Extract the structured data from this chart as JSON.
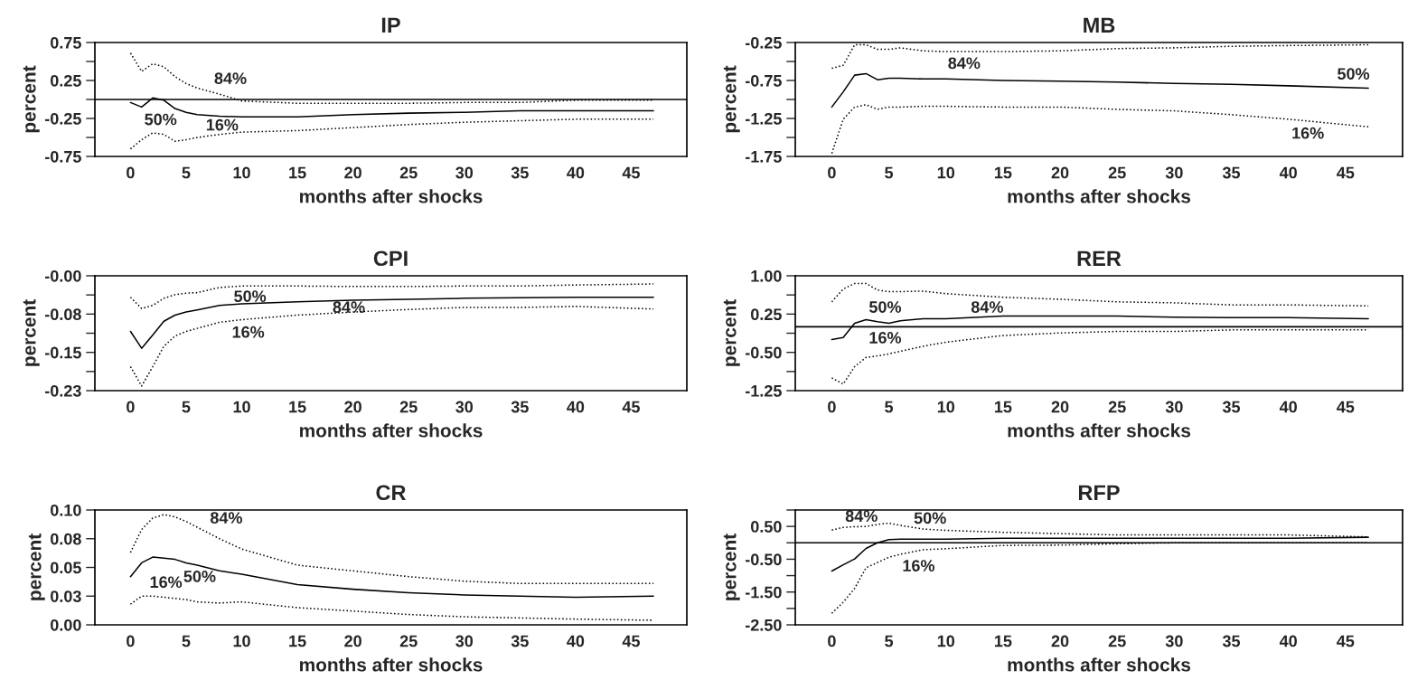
{
  "chart_data": [
    {
      "type": "line",
      "title": "IP",
      "xlabel": "months after shocks",
      "ylabel": "percent",
      "x": [
        0,
        1,
        2,
        3,
        4,
        5,
        6,
        8,
        10,
        15,
        20,
        25,
        30,
        35,
        40,
        47
      ],
      "series": [
        {
          "color": "#000000",
          "line_style": "dotted",
          "values": [
            0.61,
            0.37,
            0.47,
            0.43,
            0.3,
            0.21,
            0.15,
            0.07,
            -0.02,
            -0.05,
            -0.05,
            -0.05,
            -0.04,
            -0.04,
            -0.01,
            -0.01
          ]
        },
        {
          "color": "#000000",
          "line_style": "solid",
          "values": [
            -0.04,
            -0.1,
            0.02,
            -0.01,
            -0.12,
            -0.17,
            -0.2,
            -0.22,
            -0.23,
            -0.23,
            -0.2,
            -0.18,
            -0.17,
            -0.15,
            -0.15,
            -0.15
          ]
        },
        {
          "color": "#000000",
          "line_style": "dotted",
          "values": [
            -0.65,
            -0.53,
            -0.44,
            -0.46,
            -0.55,
            -0.53,
            -0.5,
            -0.46,
            -0.43,
            -0.41,
            -0.37,
            -0.33,
            -0.3,
            -0.28,
            -0.26,
            -0.26
          ]
        }
      ],
      "xlim": [
        -3.2,
        50
      ],
      "xticks": [
        0,
        5,
        10,
        15,
        20,
        25,
        30,
        35,
        40,
        45
      ],
      "ylim": [
        -0.75,
        0.75
      ],
      "yticks": [
        0.75,
        {
          "value": 0.5,
          "label": null
        },
        0.25,
        {
          "value": 0,
          "label": null
        },
        -0.25,
        {
          "value": -0.5,
          "label": null
        },
        -0.75
      ],
      "ref_lines": [
        {
          "axis": "y",
          "value": 0,
          "color": "#000000",
          "line_style": "solid"
        }
      ],
      "annotations": [
        "84%",
        "50%",
        "16%"
      ]
    },
    {
      "type": "line",
      "title": "MB",
      "xlabel": "months after shocks",
      "ylabel": "percent",
      "x": [
        0,
        1,
        2,
        3,
        4,
        5,
        6,
        8,
        10,
        15,
        20,
        25,
        30,
        35,
        40,
        47
      ],
      "series": [
        {
          "color": "#000000",
          "line_style": "dotted",
          "values": [
            -0.59,
            -0.55,
            -0.28,
            -0.28,
            -0.34,
            -0.34,
            -0.32,
            -0.36,
            -0.37,
            -0.37,
            -0.36,
            -0.33,
            -0.32,
            -0.3,
            -0.29,
            -0.28
          ]
        },
        {
          "color": "#000000",
          "line_style": "solid",
          "values": [
            -1.1,
            -0.9,
            -0.68,
            -0.66,
            -0.74,
            -0.72,
            -0.72,
            -0.73,
            -0.73,
            -0.75,
            -0.76,
            -0.77,
            -0.79,
            -0.8,
            -0.82,
            -0.85
          ]
        },
        {
          "color": "#000000",
          "line_style": "dotted",
          "values": [
            -1.71,
            -1.26,
            -1.1,
            -1.07,
            -1.13,
            -1.1,
            -1.1,
            -1.09,
            -1.09,
            -1.1,
            -1.1,
            -1.13,
            -1.15,
            -1.2,
            -1.26,
            -1.36
          ]
        }
      ],
      "xlim": [
        -3.2,
        50
      ],
      "xticks": [
        0,
        5,
        10,
        15,
        20,
        25,
        30,
        35,
        40,
        45
      ],
      "ylim": [
        -1.75,
        -0.25
      ],
      "yticks": [
        -0.25,
        {
          "value": -0.5,
          "label": null
        },
        -0.75,
        {
          "value": -1.0,
          "label": null
        },
        -1.25,
        {
          "value": -1.5,
          "label": null
        },
        -1.75
      ],
      "annotations": [
        "84%",
        "50%",
        "16%"
      ]
    },
    {
      "type": "line",
      "title": "CPI",
      "xlabel": "months after shocks",
      "ylabel": "percent",
      "x": [
        0,
        1,
        2,
        3,
        4,
        5,
        6,
        8,
        10,
        15,
        20,
        25,
        30,
        35,
        40,
        47
      ],
      "series": [
        {
          "color": "#000000",
          "line_style": "dotted",
          "values": [
            -0.042,
            -0.064,
            -0.058,
            -0.044,
            -0.037,
            -0.034,
            -0.033,
            -0.023,
            -0.02,
            -0.02,
            -0.021,
            -0.021,
            -0.02,
            -0.02,
            -0.018,
            -0.016
          ]
        },
        {
          "color": "#000000",
          "line_style": "solid",
          "values": [
            -0.109,
            -0.142,
            -0.116,
            -0.089,
            -0.077,
            -0.071,
            -0.067,
            -0.058,
            -0.055,
            -0.051,
            -0.048,
            -0.046,
            -0.044,
            -0.043,
            -0.042,
            -0.042
          ]
        },
        {
          "color": "#000000",
          "line_style": "dotted",
          "values": [
            -0.178,
            -0.216,
            -0.178,
            -0.138,
            -0.118,
            -0.109,
            -0.103,
            -0.091,
            -0.086,
            -0.077,
            -0.071,
            -0.066,
            -0.062,
            -0.062,
            -0.06,
            -0.065
          ]
        }
      ],
      "xlim": [
        -3.2,
        50
      ],
      "xticks": [
        0,
        5,
        10,
        15,
        20,
        25,
        30,
        35,
        40,
        45
      ],
      "ylim": [
        -0.225,
        0
      ],
      "yticks": [
        {
          "value": 0,
          "label": "-0.00"
        },
        {
          "value": -0.0375,
          "label": null
        },
        {
          "value": -0.075,
          "label": "-0.08"
        },
        {
          "value": -0.1125,
          "label": null
        },
        {
          "value": -0.15,
          "label": "-0.15"
        },
        {
          "value": -0.1875,
          "label": null
        },
        {
          "value": -0.225,
          "label": "-0.23"
        }
      ],
      "annotations": [
        "50%",
        "84%",
        "16%"
      ]
    },
    {
      "type": "line",
      "title": "RER",
      "xlabel": "months after shocks",
      "ylabel": "percent",
      "x": [
        0,
        1,
        2,
        3,
        4,
        5,
        6,
        8,
        10,
        15,
        20,
        25,
        30,
        35,
        40,
        47
      ],
      "series": [
        {
          "color": "#000000",
          "line_style": "dotted",
          "values": [
            0.49,
            0.74,
            0.85,
            0.85,
            0.72,
            0.69,
            0.69,
            0.7,
            0.65,
            0.58,
            0.54,
            0.49,
            0.47,
            0.43,
            0.43,
            0.41
          ]
        },
        {
          "color": "#000000",
          "line_style": "solid",
          "values": [
            -0.25,
            -0.21,
            0.07,
            0.14,
            0.1,
            0.07,
            0.12,
            0.16,
            0.16,
            0.21,
            0.21,
            0.21,
            0.19,
            0.18,
            0.18,
            0.16
          ]
        },
        {
          "color": "#000000",
          "line_style": "dotted",
          "values": [
            -1.0,
            -1.12,
            -0.78,
            -0.6,
            -0.57,
            -0.53,
            -0.48,
            -0.38,
            -0.3,
            -0.17,
            -0.12,
            -0.09,
            -0.09,
            -0.06,
            -0.06,
            -0.06
          ]
        }
      ],
      "xlim": [
        -3.2,
        50
      ],
      "xticks": [
        0,
        5,
        10,
        15,
        20,
        25,
        30,
        35,
        40,
        45
      ],
      "ylim": [
        -1.25,
        1.0
      ],
      "yticks": [
        {
          "value": 1.0,
          "label": "1.00"
        },
        {
          "value": 0.625,
          "label": null
        },
        0.25,
        {
          "value": -0.125,
          "label": null
        },
        {
          "value": -0.5,
          "label": "-0.50"
        },
        {
          "value": -0.875,
          "label": null
        },
        -1.25
      ],
      "ref_lines": [
        {
          "axis": "y",
          "value": 0,
          "color": "#000000",
          "line_style": "solid"
        }
      ],
      "annotations": [
        "50%",
        "84%",
        "16%"
      ]
    },
    {
      "type": "line",
      "title": "CR",
      "xlabel": "months after shocks",
      "ylabel": "percent",
      "x": [
        0,
        1,
        2,
        3,
        4,
        5,
        6,
        8,
        10,
        15,
        20,
        25,
        30,
        35,
        40,
        47
      ],
      "series": [
        {
          "color": "#000000",
          "line_style": "dotted",
          "values": [
            0.063,
            0.083,
            0.093,
            0.096,
            0.094,
            0.09,
            0.085,
            0.075,
            0.066,
            0.052,
            0.047,
            0.042,
            0.038,
            0.036,
            0.036,
            0.036
          ]
        },
        {
          "color": "#000000",
          "line_style": "solid",
          "values": [
            0.042,
            0.054,
            0.059,
            0.058,
            0.057,
            0.054,
            0.052,
            0.047,
            0.044,
            0.035,
            0.031,
            0.028,
            0.026,
            0.025,
            0.024,
            0.025
          ]
        },
        {
          "color": "#000000",
          "line_style": "dotted",
          "values": [
            0.018,
            0.025,
            0.025,
            0.024,
            0.023,
            0.022,
            0.02,
            0.019,
            0.02,
            0.015,
            0.012,
            0.009,
            0.007,
            0.006,
            0.005,
            0.004
          ]
        }
      ],
      "xlim": [
        -3.2,
        50
      ],
      "xticks": [
        0,
        5,
        10,
        15,
        20,
        25,
        30,
        35,
        40,
        45
      ],
      "ylim": [
        0,
        0.1
      ],
      "yticks": [
        {
          "value": 0.1,
          "label": "0.10"
        },
        {
          "value": 0.075,
          "label": "0.08"
        },
        0.05,
        {
          "value": 0.025,
          "label": "0.03"
        },
        {
          "value": 0,
          "label": "0.00"
        }
      ],
      "annotations": [
        "84%",
        "16%",
        "50%"
      ]
    },
    {
      "type": "line",
      "title": "RFP",
      "xlabel": "months after shocks",
      "ylabel": "percent",
      "x": [
        0,
        1,
        2,
        3,
        4,
        5,
        6,
        8,
        10,
        15,
        20,
        25,
        30,
        35,
        40,
        47
      ],
      "series": [
        {
          "color": "#000000",
          "line_style": "dotted",
          "values": [
            0.39,
            0.47,
            0.49,
            0.5,
            0.56,
            0.6,
            0.53,
            0.42,
            0.38,
            0.32,
            0.28,
            0.24,
            0.24,
            0.24,
            0.24,
            0.18
          ]
        },
        {
          "color": "#000000",
          "line_style": "solid",
          "values": [
            -0.86,
            -0.67,
            -0.49,
            -0.17,
            0.0,
            0.1,
            0.11,
            0.11,
            0.11,
            0.14,
            0.14,
            0.14,
            0.14,
            0.14,
            0.14,
            0.17
          ]
        },
        {
          "color": "#000000",
          "line_style": "dotted",
          "values": [
            -2.15,
            -1.81,
            -1.39,
            -0.76,
            -0.6,
            -0.44,
            -0.35,
            -0.21,
            -0.18,
            -0.08,
            -0.07,
            -0.03,
            0.0,
            0.0,
            0.0,
            0.0
          ]
        }
      ],
      "xlim": [
        -3.2,
        50
      ],
      "xticks": [
        0,
        5,
        10,
        15,
        20,
        25,
        30,
        35,
        40,
        45
      ],
      "ylim": [
        -2.5,
        1.0
      ],
      "yticks": [
        {
          "value": 1.0,
          "label": null
        },
        {
          "value": 0.5,
          "label": "0.50"
        },
        {
          "value": 0,
          "label": null
        },
        {
          "value": -0.5,
          "label": "-0.50"
        },
        {
          "value": -1.0,
          "label": null
        },
        {
          "value": -1.5,
          "label": "-1.50"
        },
        {
          "value": -2.0,
          "label": null
        },
        {
          "value": -2.5,
          "label": "-2.50"
        }
      ],
      "ref_lines": [
        {
          "axis": "y",
          "value": 0,
          "color": "#000000",
          "line_style": "solid"
        }
      ],
      "annotations": [
        "84%",
        "50%",
        "16%"
      ]
    }
  ]
}
